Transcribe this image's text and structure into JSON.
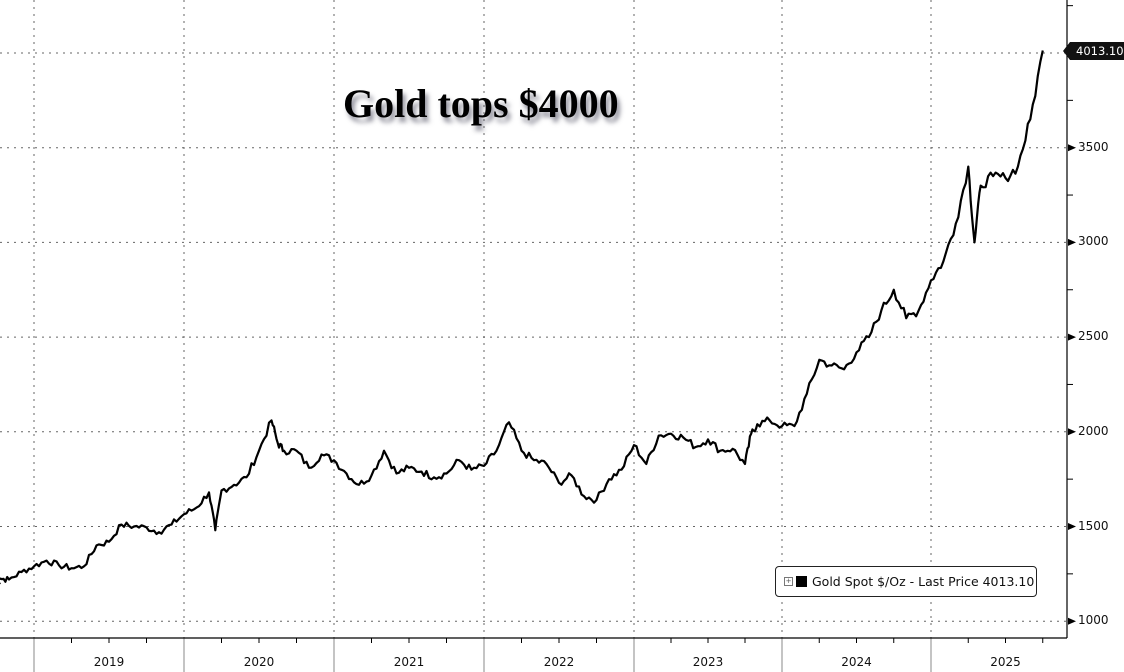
{
  "chart_data": {
    "type": "line",
    "title": "Gold tops $4000",
    "xlabel": "",
    "ylabel": "",
    "ylim": [
      1000,
      4100
    ],
    "y_ticks": [
      1000,
      1500,
      2000,
      2500,
      3000,
      3500
    ],
    "x_tick_labels": [
      "2019",
      "2020",
      "2021",
      "2022",
      "2023",
      "2024",
      "2025"
    ],
    "grid": true,
    "legend_position": "bottom-right",
    "legend": [
      "Gold Spot $/Oz - Last Price 4013.10"
    ],
    "last_price_label": "4013.10",
    "series": [
      {
        "name": "Gold Spot $/Oz",
        "color": "#000000",
        "x": [
          "2018-09",
          "2018-10",
          "2018-11",
          "2018-12",
          "2019-01",
          "2019-02",
          "2019-03",
          "2019-04",
          "2019-05",
          "2019-06",
          "2019-07",
          "2019-08",
          "2019-09",
          "2019-10",
          "2019-11",
          "2019-12",
          "2020-01",
          "2020-02",
          "2020-03a",
          "2020-03b",
          "2020-04",
          "2020-05",
          "2020-06",
          "2020-07",
          "2020-08a",
          "2020-08b",
          "2020-09",
          "2020-10",
          "2020-11",
          "2020-12",
          "2021-01",
          "2021-02",
          "2021-03",
          "2021-04",
          "2021-05",
          "2021-06",
          "2021-07",
          "2021-08",
          "2021-09",
          "2021-10",
          "2021-11",
          "2021-12",
          "2022-01",
          "2022-02",
          "2022-03",
          "2022-04",
          "2022-05",
          "2022-06",
          "2022-07",
          "2022-08",
          "2022-09",
          "2022-10",
          "2022-11",
          "2022-12",
          "2023-01",
          "2023-02",
          "2023-03",
          "2023-04",
          "2023-05",
          "2023-06",
          "2023-07",
          "2023-08",
          "2023-09",
          "2023-10a",
          "2023-10b",
          "2023-11",
          "2023-12",
          "2024-01",
          "2024-02",
          "2024-03",
          "2024-04",
          "2024-05",
          "2024-06",
          "2024-07",
          "2024-08",
          "2024-09",
          "2024-10",
          "2024-11",
          "2024-12",
          "2025-01",
          "2025-02",
          "2025-03",
          "2025-04a",
          "2025-04b",
          "2025-05",
          "2025-06",
          "2025-07",
          "2025-08",
          "2025-09",
          "2025-10"
        ],
        "values": [
          1195,
          1225,
          1220,
          1260,
          1290,
          1320,
          1295,
          1280,
          1290,
          1400,
          1420,
          1510,
          1500,
          1495,
          1470,
          1510,
          1565,
          1600,
          1680,
          1480,
          1690,
          1720,
          1760,
          1900,
          2060,
          1940,
          1900,
          1900,
          1810,
          1880,
          1850,
          1780,
          1720,
          1770,
          1900,
          1780,
          1810,
          1790,
          1760,
          1780,
          1850,
          1800,
          1820,
          1900,
          2050,
          1900,
          1850,
          1830,
          1730,
          1770,
          1660,
          1640,
          1750,
          1800,
          1930,
          1830,
          1980,
          1990,
          1970,
          1920,
          1960,
          1900,
          1910,
          1830,
          1990,
          2040,
          2060,
          2030,
          2030,
          2200,
          2380,
          2350,
          2330,
          2420,
          2500,
          2640,
          2750,
          2600,
          2640,
          2800,
          2900,
          3100,
          3400,
          3000,
          3300,
          3350,
          3340,
          3400,
          3650,
          4013
        ]
      }
    ]
  }
}
